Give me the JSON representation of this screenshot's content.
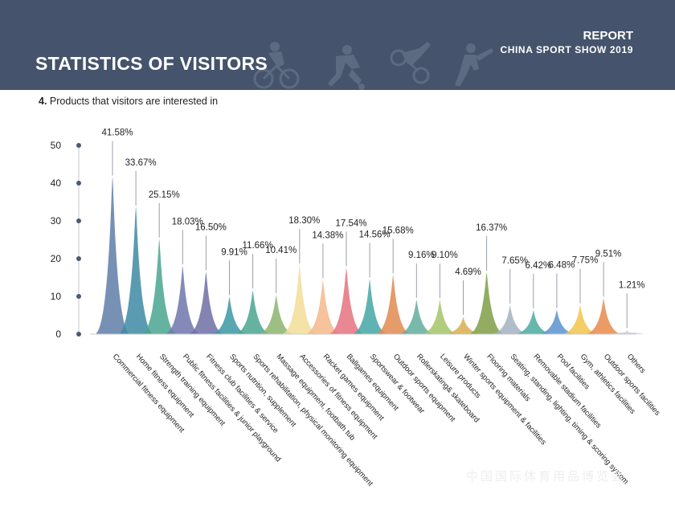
{
  "header": {
    "title": "STATISTICS OF VISITORS",
    "report": "REPORT",
    "subtitle": "CHINA SPORT SHOW 2019"
  },
  "section": {
    "number": "4.",
    "title": "Products that visitors are interested in"
  },
  "watermark": "中国国际体育用品博览会",
  "chart_data": {
    "type": "area",
    "title": "Products that visitors are interested in",
    "xlabel": "",
    "ylabel": "",
    "ylim": [
      0,
      50
    ],
    "yticks": [
      0,
      10,
      20,
      30,
      40,
      50
    ],
    "grid": false,
    "legend": "none",
    "categories": [
      "Commercial fitness equipment",
      "Home fitness equipment",
      "Strength training equipment",
      "Public fitness facilities & junior playground",
      "Fitness club facilities & service",
      "Sports nutrition, supplement",
      "Sports rehabilitation, physical monitoring equipment",
      "Massage equipment, footbath tub",
      "Accessories of fitness equipment",
      "Racket games equipment",
      "Ballgames equipment",
      "Sportswear & footwear",
      "Outdoor sports equipment",
      "Rollerskating& skateboard",
      "Leisure products",
      "Winter sports equipment & facilities",
      "Flooring materials",
      "Seating, standing, lighting, timing & scoring system",
      "Removable stadium facilities",
      "Pool facilities",
      "Gym, athletics facilities",
      "Outdoor sports facilities",
      "Others"
    ],
    "values": [
      41.58,
      33.67,
      25.15,
      18.03,
      16.5,
      9.91,
      11.66,
      10.41,
      18.3,
      14.38,
      17.54,
      14.56,
      15.68,
      9.16,
      9.1,
      4.69,
      16.37,
      7.65,
      6.42,
      6.48,
      7.75,
      9.51,
      1.21
    ],
    "value_labels": [
      "41.58%",
      "33.67%",
      "25.15%",
      "18.03%",
      "16.50%",
      "9.91%",
      "11.66%",
      "10.41%",
      "18.30%",
      "14.38%",
      "17.54%",
      "14.56%",
      "15.68%",
      "9.16%",
      "9.10%",
      "4.69%",
      "16.37%",
      "7.65%",
      "6.42%",
      "6.48%",
      "7.75%",
      "9.51%",
      "1.21%"
    ],
    "colors": [
      "#5f7ea8",
      "#3e8aa3",
      "#4aa58f",
      "#6e76ac",
      "#6f6fa6",
      "#3b98a3",
      "#4aa590",
      "#8bb46e",
      "#f2dd97",
      "#f4b88b",
      "#e5737f",
      "#43a7a6",
      "#e08a50",
      "#62ad9c",
      "#a3c668",
      "#d8ad4d",
      "#7f9f45",
      "#a2b2c2",
      "#4baaa0",
      "#5b93cf",
      "#f2c44c",
      "#e9894b",
      "#c9cdd2"
    ]
  }
}
